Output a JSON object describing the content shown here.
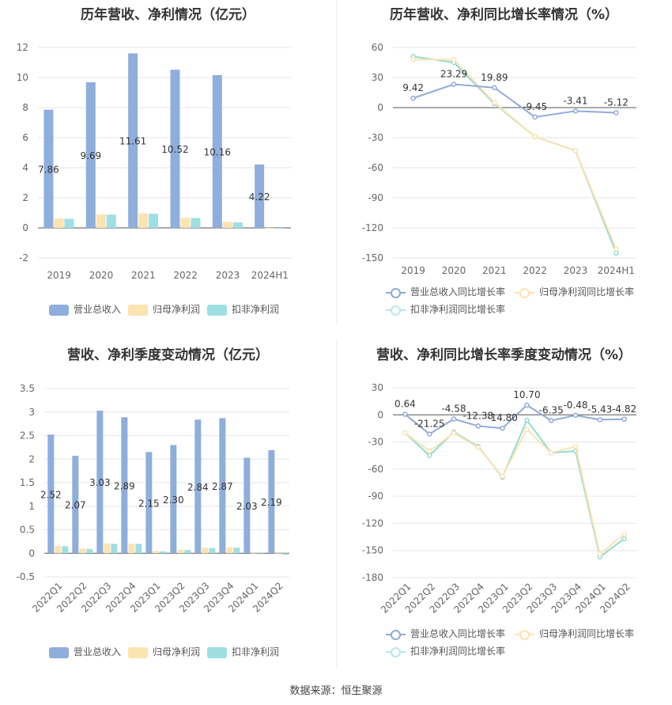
{
  "source": "数据来源：恒生聚源",
  "colors": {
    "revenue": "#8eaedb",
    "netprofit": "#fde3b0",
    "deducted": "#9edfe3",
    "revenue_line": "#91a9d8",
    "netprofit_line": "#fde3b0",
    "deducted_line": "#8fdcd3"
  },
  "legend_bar": {
    "revenue": "营业总收入",
    "netprofit": "归母净利润",
    "deducted": "扣非净利润"
  },
  "legend_line": {
    "revenue": "营业总收入同比增长率",
    "netprofit": "归母净利润同比增长率",
    "deducted": "扣非净利润同比增长率"
  },
  "chart_data": [
    {
      "type": "bar",
      "title": "历年营收、净利情况（亿元）",
      "categories": [
        "2019",
        "2020",
        "2021",
        "2022",
        "2023",
        "2024H1"
      ],
      "ylim": [
        -2,
        12
      ],
      "yticks": [
        -2,
        0,
        2,
        4,
        6,
        8,
        10,
        12
      ],
      "series": [
        {
          "name": "营业总收入",
          "values": [
            7.86,
            9.69,
            11.61,
            10.52,
            10.16,
            4.22
          ],
          "labels": [
            "7.86",
            "9.69",
            "11.61",
            "10.52",
            "10.16",
            "4.22"
          ]
        },
        {
          "name": "归母净利润",
          "values": [
            0.62,
            0.91,
            0.97,
            0.68,
            0.4,
            -0.03
          ]
        },
        {
          "name": "扣非净利润",
          "values": [
            0.6,
            0.88,
            0.94,
            0.66,
            0.37,
            -0.05
          ]
        }
      ]
    },
    {
      "type": "line",
      "title": "历年营收、净利同比增长率情况（%）",
      "categories": [
        "2019",
        "2020",
        "2021",
        "2022",
        "2023",
        "2024H1"
      ],
      "ylim": [
        -150,
        60
      ],
      "yticks": [
        -150,
        -120,
        -90,
        -60,
        -30,
        0,
        30,
        60
      ],
      "series": [
        {
          "name": "营业总收入同比增长率",
          "values": [
            9.42,
            23.29,
            19.89,
            -9.45,
            -3.41,
            -5.12
          ],
          "labels": [
            "9.42",
            "23.29",
            "19.89",
            "-9.45",
            "-3.41",
            "-5.12"
          ]
        },
        {
          "name": "归母净利润同比增长率",
          "values": [
            48,
            48,
            5,
            -29,
            -43,
            -141
          ]
        },
        {
          "name": "扣非净利润同比增长率",
          "values": [
            51,
            45,
            4,
            -29,
            -43,
            -145
          ]
        }
      ]
    },
    {
      "type": "bar",
      "title": "营收、净利季度变动情况（亿元）",
      "categories": [
        "2022Q1",
        "2022Q2",
        "2022Q3",
        "2022Q4",
        "2023Q1",
        "2023Q2",
        "2023Q3",
        "2023Q4",
        "2024Q1",
        "2024Q2"
      ],
      "ylim": [
        -0.5,
        3.5
      ],
      "yticks": [
        -0.5,
        0,
        0.5,
        1,
        1.5,
        2,
        2.5,
        3,
        3.5
      ],
      "series": [
        {
          "name": "营业总收入",
          "values": [
            2.52,
            2.07,
            3.03,
            2.89,
            2.15,
            2.3,
            2.84,
            2.87,
            2.03,
            2.19
          ],
          "labels": [
            "2.52",
            "2.07",
            "3.03",
            "2.89",
            "2.15",
            "2.30",
            "2.84",
            "2.87",
            "2.03",
            "2.19"
          ]
        },
        {
          "name": "归母净利润",
          "values": [
            0.16,
            0.1,
            0.21,
            0.2,
            0.05,
            0.07,
            0.12,
            0.13,
            -0.01,
            -0.02
          ]
        },
        {
          "name": "扣非净利润",
          "values": [
            0.15,
            0.09,
            0.2,
            0.2,
            0.04,
            0.07,
            0.11,
            0.12,
            -0.02,
            -0.03
          ]
        }
      ]
    },
    {
      "type": "line",
      "title": "营收、净利同比增长率季度变动情况（%）",
      "categories": [
        "2022Q1",
        "2022Q2",
        "2022Q3",
        "2022Q4",
        "2023Q1",
        "2023Q2",
        "2023Q3",
        "2023Q4",
        "2024Q1",
        "2024Q2"
      ],
      "ylim": [
        -180,
        30
      ],
      "yticks": [
        -180,
        -150,
        -120,
        -90,
        -60,
        -30,
        0,
        30
      ],
      "series": [
        {
          "name": "营业总收入同比增长率",
          "values": [
            0.64,
            -21.25,
            -4.58,
            -12.38,
            -14.8,
            10.7,
            -6.35,
            -0.48,
            -5.43,
            -4.82
          ],
          "labels": [
            "0.64",
            "-21.25",
            "-4.58",
            "-12.38",
            "-14.80",
            "10.70",
            "-6.35",
            "-0.48",
            "-5.43",
            "-4.82"
          ]
        },
        {
          "name": "归母净利润同比增长率",
          "values": [
            -20,
            -40,
            -20,
            -36,
            -68,
            -16,
            -42,
            -35,
            -154,
            -132
          ]
        },
        {
          "name": "扣非净利润同比增长率",
          "values": [
            -20,
            -45,
            -19,
            -35,
            -69,
            -6,
            -42,
            -40,
            -157,
            -137
          ]
        }
      ]
    }
  ]
}
